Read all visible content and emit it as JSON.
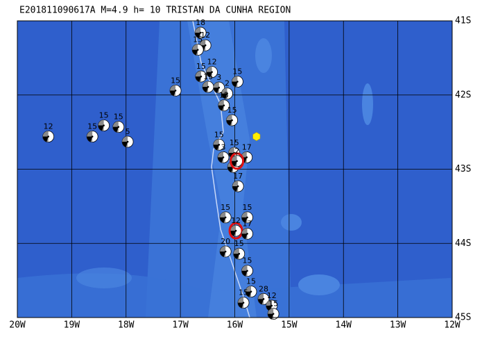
{
  "map": {
    "title": "E201811090617A M=4.9 h= 10 TRISTAN DA CUNHA REGION",
    "xlim": [
      -20,
      -12
    ],
    "ylim": [
      -45,
      -41
    ],
    "xticks": [
      {
        "value": -20,
        "label": "20W"
      },
      {
        "value": -19,
        "label": "19W"
      },
      {
        "value": -18,
        "label": "18W"
      },
      {
        "value": -17,
        "label": "17W"
      },
      {
        "value": -16,
        "label": "16W"
      },
      {
        "value": -15,
        "label": "15W"
      },
      {
        "value": -14,
        "label": "14W"
      },
      {
        "value": -13,
        "label": "13W"
      },
      {
        "value": -12,
        "label": "12W"
      }
    ],
    "yticks": [
      {
        "value": -41,
        "label": "41S"
      },
      {
        "value": -42,
        "label": "42S"
      },
      {
        "value": -43,
        "label": "43S"
      },
      {
        "value": -44,
        "label": "44S"
      },
      {
        "value": -45,
        "label": "45S"
      }
    ],
    "grid": true,
    "station": {
      "lon": -15.6,
      "lat": -42.56,
      "color": "#ffee00"
    },
    "events": [
      {
        "lon": -16.63,
        "lat": -41.16,
        "label": "18"
      },
      {
        "lon": -16.54,
        "lat": -41.33,
        "label": "12"
      },
      {
        "lon": -16.68,
        "lat": -41.39,
        "label": "15"
      },
      {
        "lon": -16.62,
        "lat": -41.75,
        "label": "15"
      },
      {
        "lon": -16.42,
        "lat": -41.69,
        "label": "12"
      },
      {
        "lon": -16.49,
        "lat": -41.89,
        "label": "15"
      },
      {
        "lon": -16.29,
        "lat": -41.9,
        "label": "3"
      },
      {
        "lon": -16.14,
        "lat": -41.98,
        "label": "2"
      },
      {
        "lon": -15.95,
        "lat": -41.82,
        "label": "15"
      },
      {
        "lon": -17.09,
        "lat": -41.94,
        "label": "15"
      },
      {
        "lon": -16.2,
        "lat": -42.14,
        "label": "15"
      },
      {
        "lon": -16.05,
        "lat": -42.34,
        "label": "15"
      },
      {
        "lon": -19.43,
        "lat": -42.56,
        "label": "12"
      },
      {
        "lon": -18.62,
        "lat": -42.56,
        "label": "15"
      },
      {
        "lon": -18.41,
        "lat": -42.41,
        "label": "15"
      },
      {
        "lon": -18.14,
        "lat": -42.43,
        "label": "15"
      },
      {
        "lon": -17.97,
        "lat": -42.63,
        "label": "5"
      },
      {
        "lon": -16.29,
        "lat": -42.67,
        "label": "15"
      },
      {
        "lon": -16.21,
        "lat": -42.84,
        "label": "3"
      },
      {
        "lon": -16.01,
        "lat": -42.78,
        "label": "15"
      },
      {
        "lon": -15.78,
        "lat": -42.84,
        "label": "17"
      },
      {
        "lon": -16.03,
        "lat": -42.97,
        "label": "10"
      },
      {
        "lon": -15.96,
        "lat": -42.89,
        "label": "2",
        "highlight": true
      },
      {
        "lon": -15.94,
        "lat": -43.23,
        "label": "17"
      },
      {
        "lon": -16.17,
        "lat": -43.65,
        "label": "15"
      },
      {
        "lon": -15.77,
        "lat": -43.65,
        "label": "15"
      },
      {
        "lon": -15.98,
        "lat": -43.83,
        "label": "12",
        "highlight": true
      },
      {
        "lon": -15.77,
        "lat": -43.87,
        "label": "17"
      },
      {
        "lon": -16.17,
        "lat": -44.11,
        "label": "20"
      },
      {
        "lon": -15.92,
        "lat": -44.14,
        "label": "15"
      },
      {
        "lon": -15.77,
        "lat": -44.37,
        "label": "15"
      },
      {
        "lon": -15.7,
        "lat": -44.65,
        "label": "15"
      },
      {
        "lon": -15.84,
        "lat": -44.8,
        "label": "15"
      },
      {
        "lon": -15.47,
        "lat": -44.75,
        "label": "28"
      },
      {
        "lon": -15.32,
        "lat": -44.84,
        "label": "12"
      },
      {
        "lon": -15.29,
        "lat": -44.95,
        "label": "15"
      }
    ]
  }
}
